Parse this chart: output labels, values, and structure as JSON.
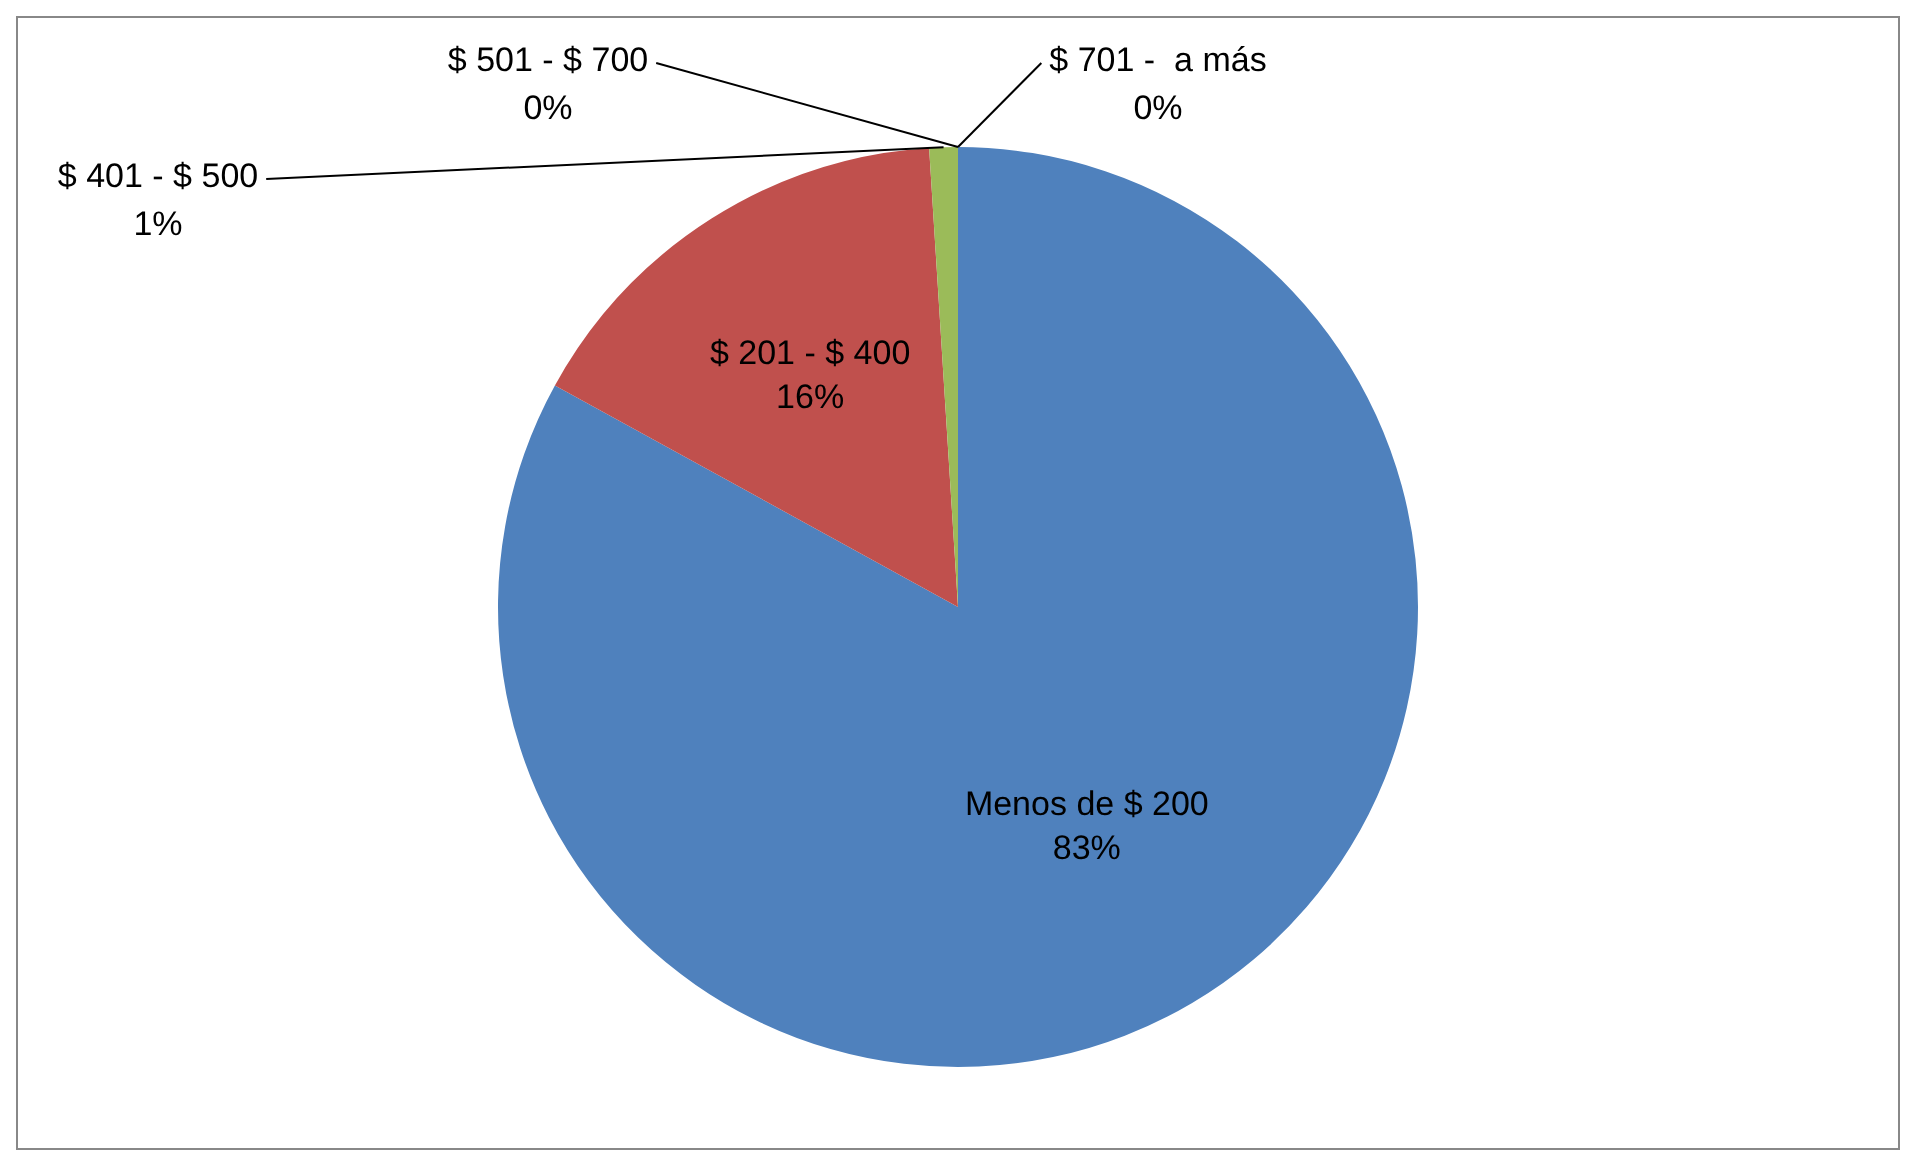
{
  "chart_data": {
    "type": "pie",
    "categories": [
      "Menos de $ 200",
      "$ 201 - $ 400",
      "$ 401 - $ 500",
      "$ 501 - $ 700",
      "$ 701 -  a más"
    ],
    "values": [
      83,
      16,
      1,
      0,
      0
    ],
    "colors": [
      "#4f81bd",
      "#c0504d",
      "#9bbb59",
      "#8064a2",
      "#4bacc6"
    ],
    "value_labels": [
      "83%",
      "16%",
      "1%",
      "0%",
      "0%"
    ],
    "legend": false
  }
}
